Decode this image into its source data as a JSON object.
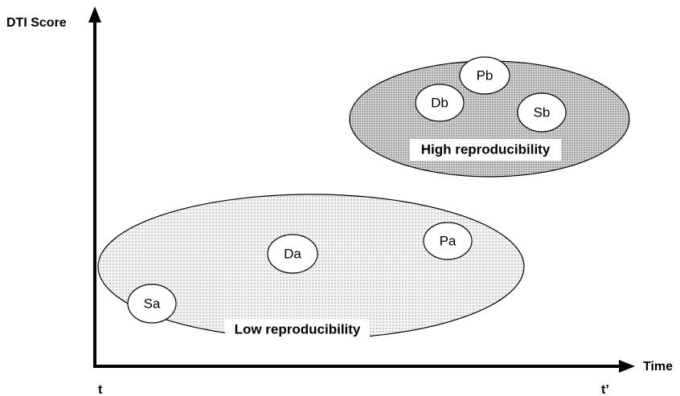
{
  "axes": {
    "y_label": "DTI Score",
    "x_label": "Time",
    "x_start": "t",
    "x_end": "t’"
  },
  "groups": [
    {
      "label": "Low reproducibility",
      "nodes": [
        "Sa",
        "Da",
        "Pa"
      ]
    },
    {
      "label": "High reproducibility",
      "nodes": [
        "Db",
        "Pb",
        "Sb"
      ]
    }
  ]
}
